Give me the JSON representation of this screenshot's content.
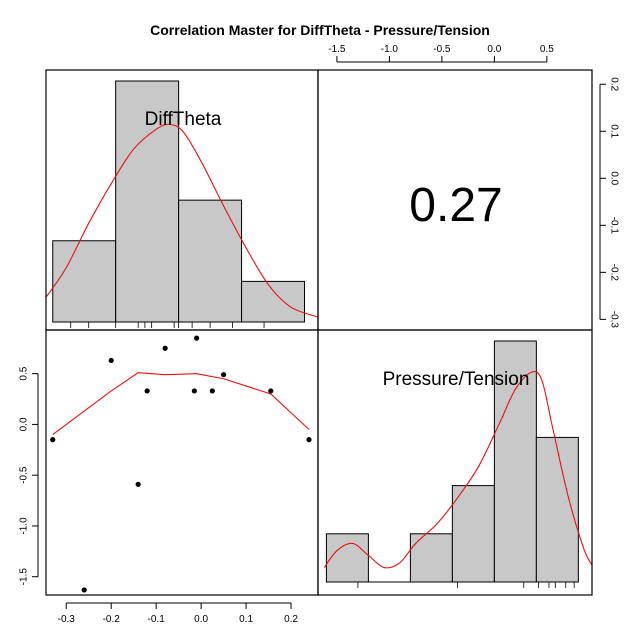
{
  "chart_data": {
    "type": "pairs",
    "title": "Correlation Master for DiffTheta - Pressure/Tension",
    "variables": [
      "DiffTheta",
      "Pressure/Tension"
    ],
    "correlation_label": "0.27",
    "axes": {
      "DiffTheta": {
        "range": [
          -0.345,
          0.26
        ],
        "ticks": [
          -0.3,
          -0.2,
          -0.1,
          0.0,
          0.1,
          0.2
        ],
        "tick_labels": [
          "-0.3",
          "-0.2",
          "-0.1",
          "0.0",
          "0.1",
          "0.2"
        ]
      },
      "Pressure/Tension": {
        "range": [
          -1.68,
          0.93
        ],
        "ticks": [
          -1.5,
          -1.0,
          -0.5,
          0.0,
          0.5
        ],
        "tick_labels": [
          "-1.5",
          "-1.0",
          "-0.5",
          "0.0",
          "0.5"
        ]
      },
      "right_axis": {
        "range": [
          -0.3226,
          0.2303
        ],
        "ticks": [
          -0.3,
          -0.2,
          -0.1,
          0.0,
          0.1,
          0.2
        ],
        "tick_labels": [
          "-0.3",
          "-0.2",
          "-0.1",
          "0.0",
          "0.1",
          "0.2"
        ]
      }
    },
    "scatter_points": [
      {
        "x": -0.33,
        "y": -0.15
      },
      {
        "x": -0.26,
        "y": -1.63
      },
      {
        "x": -0.2,
        "y": 0.63
      },
      {
        "x": -0.14,
        "y": -0.59
      },
      {
        "x": -0.12,
        "y": 0.33
      },
      {
        "x": -0.08,
        "y": 0.75
      },
      {
        "x": -0.015,
        "y": 0.33
      },
      {
        "x": -0.01,
        "y": 0.85
      },
      {
        "x": 0.025,
        "y": 0.33
      },
      {
        "x": 0.05,
        "y": 0.49
      },
      {
        "x": 0.155,
        "y": 0.33
      },
      {
        "x": 0.24,
        "y": -0.15
      }
    ],
    "smooth_line": [
      {
        "x": -0.33,
        "y": -0.1
      },
      {
        "x": -0.2,
        "y": 0.33
      },
      {
        "x": -0.14,
        "y": 0.51
      },
      {
        "x": -0.08,
        "y": 0.49
      },
      {
        "x": -0.01,
        "y": 0.5
      },
      {
        "x": 0.05,
        "y": 0.45
      },
      {
        "x": 0.155,
        "y": 0.3
      },
      {
        "x": 0.24,
        "y": -0.05
      }
    ],
    "hist_difftheta": {
      "bins": [
        {
          "from": -0.33,
          "to": -0.19,
          "height": 0.3
        },
        {
          "from": -0.19,
          "to": -0.05,
          "height": 0.89
        },
        {
          "from": -0.05,
          "to": 0.09,
          "height": 0.45
        },
        {
          "from": 0.09,
          "to": 0.23,
          "height": 0.15
        }
      ],
      "density": [
        {
          "x": -0.345,
          "y": 0.1
        },
        {
          "x": -0.3,
          "y": 0.22
        },
        {
          "x": -0.25,
          "y": 0.4
        },
        {
          "x": -0.2,
          "y": 0.56
        },
        {
          "x": -0.15,
          "y": 0.7
        },
        {
          "x": -0.1,
          "y": 0.78
        },
        {
          "x": -0.07,
          "y": 0.8
        },
        {
          "x": -0.04,
          "y": 0.77
        },
        {
          "x": 0.0,
          "y": 0.65
        },
        {
          "x": 0.05,
          "y": 0.47
        },
        {
          "x": 0.1,
          "y": 0.3
        },
        {
          "x": 0.15,
          "y": 0.15
        },
        {
          "x": 0.2,
          "y": 0.06
        },
        {
          "x": 0.26,
          "y": 0.02
        }
      ],
      "rug": [
        -0.29,
        -0.25,
        -0.19,
        -0.14,
        -0.125,
        -0.11,
        -0.06,
        -0.05,
        -0.02,
        0.02,
        0.07,
        0.14
      ]
    },
    "hist_pressure": {
      "bins": [
        {
          "from": -1.6,
          "to": -1.2,
          "height": 0.2
        },
        {
          "from": -1.2,
          "to": -0.8,
          "height": 0.0
        },
        {
          "from": -0.8,
          "to": -0.4,
          "height": 0.2
        },
        {
          "from": -0.4,
          "to": 0.0,
          "height": 0.4
        },
        {
          "from": 0.0,
          "to": 0.4,
          "height": 1.0
        },
        {
          "from": 0.4,
          "to": 0.8,
          "height": 0.6
        }
      ],
      "density": [
        {
          "x": -1.62,
          "y": 0.06
        },
        {
          "x": -1.5,
          "y": 0.13
        },
        {
          "x": -1.35,
          "y": 0.16
        },
        {
          "x": -1.2,
          "y": 0.11
        },
        {
          "x": -1.05,
          "y": 0.06
        },
        {
          "x": -0.9,
          "y": 0.08
        },
        {
          "x": -0.75,
          "y": 0.16
        },
        {
          "x": -0.55,
          "y": 0.24
        },
        {
          "x": -0.35,
          "y": 0.35
        },
        {
          "x": -0.15,
          "y": 0.48
        },
        {
          "x": 0.05,
          "y": 0.66
        },
        {
          "x": 0.2,
          "y": 0.8
        },
        {
          "x": 0.35,
          "y": 0.87
        },
        {
          "x": 0.45,
          "y": 0.84
        },
        {
          "x": 0.55,
          "y": 0.65
        },
        {
          "x": 0.7,
          "y": 0.36
        },
        {
          "x": 0.85,
          "y": 0.14
        },
        {
          "x": 0.93,
          "y": 0.07
        }
      ],
      "rug": [
        -1.3,
        -0.35,
        0.28,
        0.42,
        0.52,
        0.58,
        0.68,
        0.76
      ]
    },
    "colors": {
      "bar_fill": "#c8c8c8",
      "density": "#ee1111",
      "smooth": "#ee1111",
      "points": "#000000"
    }
  }
}
